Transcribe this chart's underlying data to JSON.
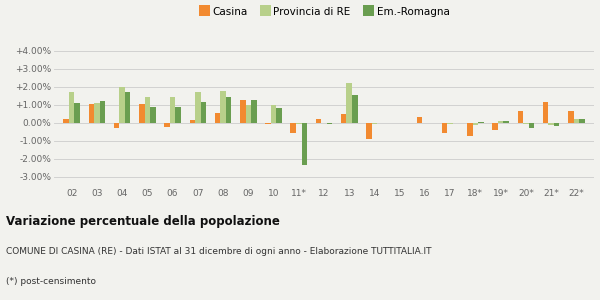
{
  "categories": [
    "02",
    "03",
    "04",
    "05",
    "06",
    "07",
    "08",
    "09",
    "10",
    "11*",
    "12",
    "13",
    "14",
    "15",
    "16",
    "17",
    "18*",
    "19*",
    "20*",
    "21*",
    "22*"
  ],
  "casina": [
    0.25,
    1.05,
    -0.3,
    1.05,
    -0.2,
    0.15,
    0.55,
    1.3,
    -0.05,
    -0.55,
    0.25,
    0.5,
    -0.9,
    0.0,
    0.35,
    -0.55,
    -0.7,
    -0.4,
    0.65,
    1.15,
    0.65
  ],
  "provincia": [
    1.7,
    1.1,
    2.0,
    1.45,
    1.45,
    1.7,
    1.8,
    1.0,
    1.0,
    -0.05,
    0.0,
    2.2,
    -0.05,
    0.0,
    0.0,
    -0.05,
    -0.1,
    0.1,
    -0.05,
    -0.1,
    0.2
  ],
  "emromagna": [
    1.1,
    1.2,
    1.7,
    0.9,
    0.9,
    1.15,
    1.45,
    1.3,
    0.85,
    -2.35,
    -0.05,
    1.55,
    0.0,
    0.0,
    0.0,
    0.0,
    0.05,
    0.1,
    -0.3,
    -0.15,
    0.2
  ],
  "color_casina": "#f28a30",
  "color_provincia": "#b8d08a",
  "color_emromagna": "#6a9e50",
  "title": "Variazione percentuale della popolazione",
  "subtitle1": "COMUNE DI CASINA (RE) - Dati ISTAT al 31 dicembre di ogni anno - Elaborazione TUTTITALIA.IT",
  "subtitle2": "(*) post-censimento",
  "bg_color": "#f2f2ee",
  "ylim": [
    -3.5,
    4.5
  ],
  "yticks": [
    -3.0,
    -2.0,
    -1.0,
    0.0,
    1.0,
    2.0,
    3.0,
    4.0
  ],
  "ytick_labels": [
    "-3.00%",
    "-2.00%",
    "-1.00%",
    "0.00%",
    "+1.00%",
    "+2.00%",
    "+3.00%",
    "+4.00%"
  ]
}
